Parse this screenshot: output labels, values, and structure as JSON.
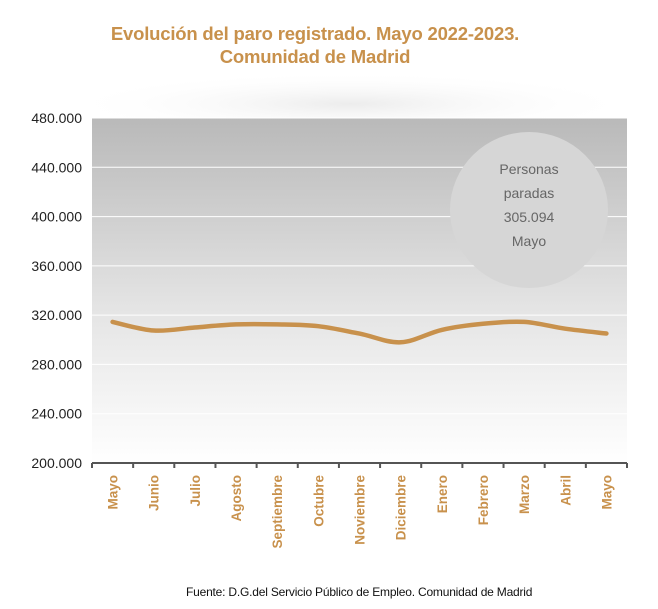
{
  "chart_data": {
    "type": "line",
    "title": [
      "Evolución del paro registrado. Mayo 2022-2023.",
      "Comunidad de Madrid"
    ],
    "categories": [
      "Mayo",
      "Junio",
      "Julio",
      "Agosto",
      "Septiembre",
      "Octubre",
      "Noviembre",
      "Diciembre",
      "Enero",
      "Febrero",
      "Marzo",
      "Abril",
      "Mayo"
    ],
    "series": [
      {
        "values": [
          314500,
          307500,
          310000,
          312500,
          312500,
          311000,
          305000,
          298000,
          308000,
          313000,
          314500,
          309000,
          305094
        ]
      }
    ],
    "ylim": [
      200000,
      480000
    ],
    "yticks": [
      200000,
      240000,
      280000,
      320000,
      360000,
      400000,
      440000,
      480000
    ],
    "ytick_labels": [
      "200.000",
      "240.000",
      "280.000",
      "320.000",
      "360.000",
      "400.000",
      "440.000",
      "480.000"
    ],
    "grid": true,
    "line_color": "#c8914c",
    "annotation": {
      "lines": [
        "Personas",
        "paradas",
        "305.094",
        "Mayo"
      ]
    },
    "source": "Fuente: D.G.del Servicio Público de Empleo. Comunidad  de Madrid"
  }
}
